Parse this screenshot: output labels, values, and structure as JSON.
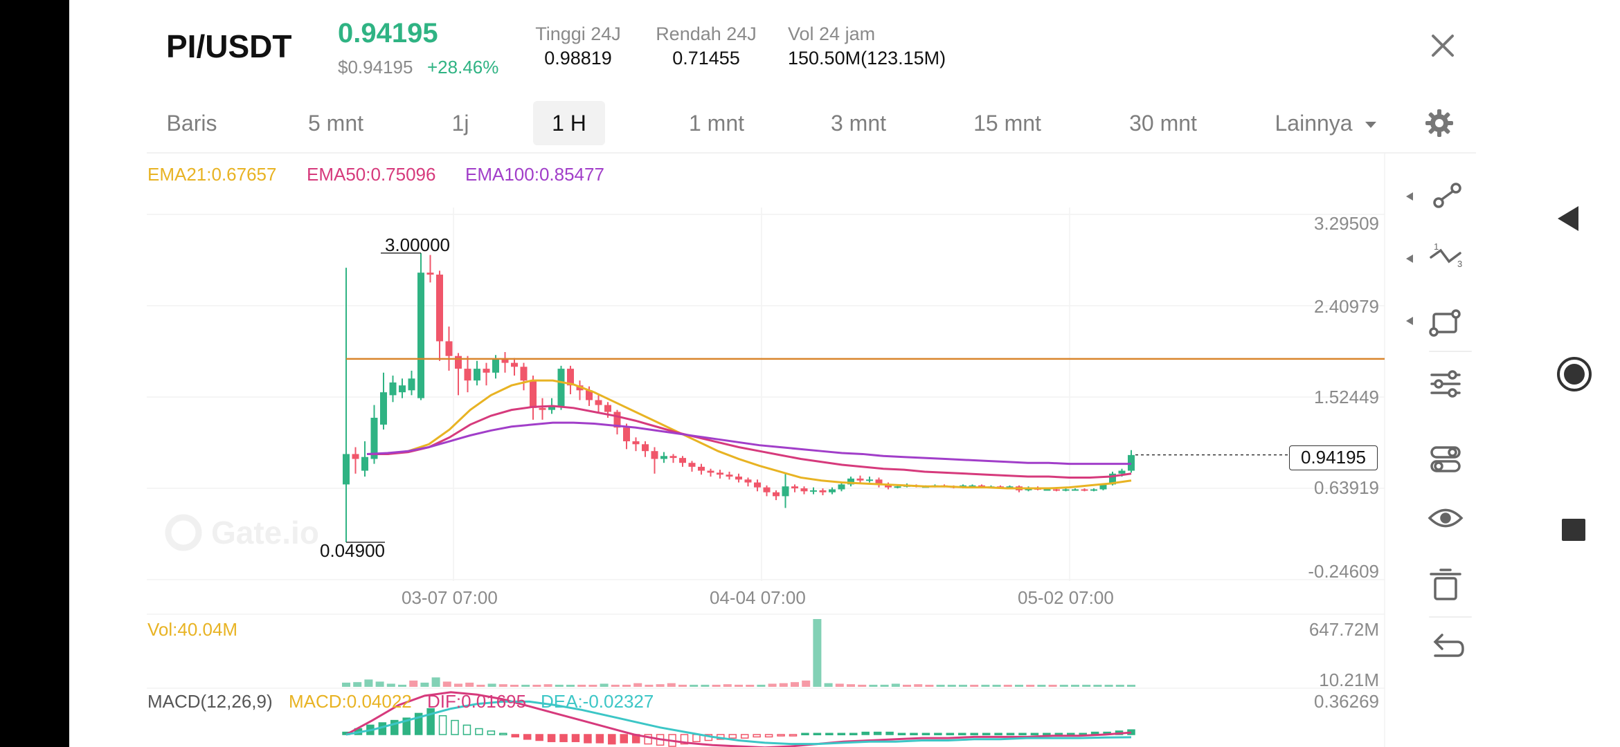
{
  "header": {
    "pair": "PI/USDT",
    "price": "0.94195",
    "price_usd": "$0.94195",
    "change": "+28.46%",
    "stats": [
      {
        "label": "Tinggi 24J",
        "value": "0.98819"
      },
      {
        "label": "Rendah 24J",
        "value": "0.71455"
      },
      {
        "label": "Vol 24 jam",
        "value": "150.50M(123.15M)"
      }
    ]
  },
  "tabs": [
    {
      "label": "Baris",
      "active": false
    },
    {
      "label": "5 mnt",
      "active": false
    },
    {
      "label": "1j",
      "active": false
    },
    {
      "label": "1 H",
      "active": true
    },
    {
      "label": "1 mnt",
      "active": false
    },
    {
      "label": "3 mnt",
      "active": false
    },
    {
      "label": "15 mnt",
      "active": false
    },
    {
      "label": "30 mnt",
      "active": false
    }
  ],
  "more_label": "Lainnya",
  "indicators": {
    "ema21": "EMA21:0.67657",
    "ema50": "EMA50:0.75096",
    "ema100": "EMA100:0.85477",
    "vol": "Vol:40.04M",
    "macd_title": "MACD(12,26,9)",
    "macd": "MACD:0.04022",
    "dif": "DIF:0.01695",
    "dea": "DEA:-0.02327"
  },
  "chart": {
    "y_ticks": [
      "3.29509",
      "2.40979",
      "1.52449",
      "0.63919",
      "-0.24609"
    ],
    "x_ticks": [
      "03-07 07:00",
      "04-04 07:00",
      "05-02 07:00"
    ],
    "high_label": "3.00000",
    "low_label": "0.04900",
    "current_price_tag": "0.94195",
    "vol_ticks": [
      "647.72M",
      "10.21M"
    ],
    "macd_top_tick": "0.36269",
    "watermark": "Gate.io"
  },
  "colors": {
    "up": "#2fb383",
    "down": "#f0566a",
    "ema21": "#e8b323",
    "ema50": "#d63a7c",
    "ema100": "#a13ec9",
    "hline": "#d9842b",
    "dif": "#d63a7c",
    "dea": "#3cc6c6"
  },
  "chart_data": {
    "type": "candlestick",
    "candles": [
      [
        0.64,
        0.95,
        0.05,
        2.85
      ],
      [
        0.95,
        0.9,
        0.75,
        1.02
      ],
      [
        0.78,
        0.92,
        0.72,
        1.08
      ],
      [
        0.9,
        1.32,
        0.85,
        1.45
      ],
      [
        1.25,
        1.58,
        1.2,
        1.78
      ],
      [
        1.55,
        1.68,
        1.48,
        1.75
      ],
      [
        1.58,
        1.65,
        1.52,
        1.72
      ],
      [
        1.6,
        1.72,
        1.55,
        1.8
      ],
      [
        1.52,
        2.8,
        1.5,
        3.0
      ],
      [
        2.8,
        2.78,
        2.7,
        2.98
      ],
      [
        2.78,
        2.1,
        1.9,
        2.82
      ],
      [
        2.1,
        1.95,
        1.8,
        2.25
      ],
      [
        1.95,
        1.82,
        1.55,
        1.98
      ],
      [
        1.82,
        1.7,
        1.58,
        1.95
      ],
      [
        1.7,
        1.82,
        1.65,
        1.9
      ],
      [
        1.82,
        1.78,
        1.65,
        1.88
      ],
      [
        1.78,
        1.92,
        1.72,
        1.96
      ],
      [
        1.92,
        1.88,
        1.78,
        1.99
      ],
      [
        1.88,
        1.84,
        1.75,
        1.93
      ],
      [
        1.84,
        1.7,
        1.6,
        1.88
      ],
      [
        1.7,
        1.42,
        1.3,
        1.75
      ],
      [
        1.42,
        1.4,
        1.3,
        1.52
      ],
      [
        1.4,
        1.44,
        1.36,
        1.52
      ],
      [
        1.44,
        1.82,
        1.4,
        1.85
      ],
      [
        1.82,
        1.65,
        1.56,
        1.85
      ],
      [
        1.65,
        1.6,
        1.5,
        1.7
      ],
      [
        1.6,
        1.5,
        1.44,
        1.64
      ],
      [
        1.5,
        1.45,
        1.38,
        1.55
      ],
      [
        1.45,
        1.38,
        1.32,
        1.48
      ],
      [
        1.38,
        1.22,
        1.15,
        1.4
      ],
      [
        1.22,
        1.08,
        1.0,
        1.26
      ],
      [
        1.08,
        1.05,
        0.98,
        1.12
      ],
      [
        1.05,
        0.98,
        0.92,
        1.08
      ],
      [
        0.98,
        0.9,
        0.75,
        1.02
      ],
      [
        0.9,
        0.93,
        0.86,
        0.97
      ],
      [
        0.93,
        0.91,
        0.86,
        0.95
      ],
      [
        0.91,
        0.86,
        0.82,
        0.93
      ],
      [
        0.86,
        0.82,
        0.77,
        0.88
      ],
      [
        0.82,
        0.78,
        0.74,
        0.85
      ],
      [
        0.78,
        0.76,
        0.72,
        0.8
      ],
      [
        0.76,
        0.74,
        0.7,
        0.79
      ],
      [
        0.74,
        0.72,
        0.69,
        0.77
      ],
      [
        0.72,
        0.69,
        0.66,
        0.75
      ],
      [
        0.69,
        0.66,
        0.62,
        0.71
      ],
      [
        0.66,
        0.61,
        0.57,
        0.69
      ],
      [
        0.61,
        0.56,
        0.52,
        0.63
      ],
      [
        0.56,
        0.52,
        0.48,
        0.58
      ],
      [
        0.52,
        0.62,
        0.4,
        0.75
      ],
      [
        0.62,
        0.6,
        0.56,
        0.64
      ],
      [
        0.6,
        0.57,
        0.54,
        0.62
      ],
      [
        0.57,
        0.58,
        0.54,
        0.61
      ],
      [
        0.58,
        0.56,
        0.53,
        0.6
      ],
      [
        0.56,
        0.59,
        0.54,
        0.61
      ],
      [
        0.59,
        0.64,
        0.57,
        0.66
      ],
      [
        0.64,
        0.7,
        0.62,
        0.72
      ],
      [
        0.7,
        0.68,
        0.65,
        0.73
      ],
      [
        0.68,
        0.69,
        0.66,
        0.72
      ],
      [
        0.69,
        0.64,
        0.61,
        0.71
      ],
      [
        0.64,
        0.61,
        0.59,
        0.66
      ],
      [
        0.61,
        0.62,
        0.6,
        0.64
      ],
      [
        0.62,
        0.63,
        0.61,
        0.65
      ],
      [
        0.63,
        0.62,
        0.61,
        0.64
      ],
      [
        0.62,
        0.62,
        0.61,
        0.63
      ],
      [
        0.62,
        0.63,
        0.61,
        0.64
      ],
      [
        0.63,
        0.62,
        0.61,
        0.64
      ],
      [
        0.62,
        0.61,
        0.6,
        0.63
      ],
      [
        0.61,
        0.63,
        0.6,
        0.64
      ],
      [
        0.63,
        0.63,
        0.62,
        0.64
      ],
      [
        0.63,
        0.62,
        0.61,
        0.64
      ],
      [
        0.62,
        0.62,
        0.61,
        0.63
      ],
      [
        0.62,
        0.61,
        0.6,
        0.63
      ],
      [
        0.61,
        0.62,
        0.6,
        0.63
      ],
      [
        0.62,
        0.58,
        0.56,
        0.63
      ],
      [
        0.58,
        0.6,
        0.57,
        0.62
      ],
      [
        0.6,
        0.59,
        0.58,
        0.62
      ],
      [
        0.59,
        0.59,
        0.58,
        0.6
      ],
      [
        0.59,
        0.58,
        0.57,
        0.6
      ],
      [
        0.58,
        0.59,
        0.57,
        0.6
      ],
      [
        0.59,
        0.59,
        0.58,
        0.6
      ],
      [
        0.59,
        0.58,
        0.57,
        0.6
      ],
      [
        0.58,
        0.59,
        0.57,
        0.6
      ],
      [
        0.59,
        0.64,
        0.58,
        0.65
      ],
      [
        0.64,
        0.75,
        0.63,
        0.77
      ],
      [
        0.75,
        0.78,
        0.72,
        0.8
      ],
      [
        0.78,
        0.94,
        0.76,
        0.99
      ]
    ],
    "ema21": [
      0.95,
      0.95,
      0.98,
      1.05,
      1.2,
      1.4,
      1.55,
      1.65,
      1.7,
      1.7,
      1.66,
      1.58,
      1.48,
      1.38,
      1.28,
      1.18,
      1.08,
      0.98,
      0.9,
      0.83,
      0.77,
      0.71,
      0.68,
      0.66,
      0.65,
      0.64,
      0.63,
      0.62,
      0.62,
      0.61,
      0.61,
      0.6,
      0.6,
      0.6,
      0.61,
      0.63,
      0.65,
      0.68
    ],
    "ema50": [
      0.95,
      0.95,
      0.97,
      1.02,
      1.12,
      1.25,
      1.34,
      1.4,
      1.43,
      1.44,
      1.42,
      1.38,
      1.34,
      1.29,
      1.23,
      1.17,
      1.12,
      1.07,
      1.02,
      0.98,
      0.94,
      0.9,
      0.87,
      0.84,
      0.82,
      0.8,
      0.79,
      0.77,
      0.76,
      0.75,
      0.74,
      0.73,
      0.72,
      0.72,
      0.71,
      0.71,
      0.72,
      0.75
    ],
    "ema100": [
      0.95,
      0.96,
      0.98,
      1.02,
      1.08,
      1.14,
      1.19,
      1.23,
      1.25,
      1.27,
      1.27,
      1.26,
      1.24,
      1.22,
      1.19,
      1.16,
      1.13,
      1.1,
      1.07,
      1.04,
      1.02,
      1.0,
      0.98,
      0.96,
      0.95,
      0.93,
      0.92,
      0.91,
      0.9,
      0.89,
      0.88,
      0.87,
      0.86,
      0.86,
      0.85,
      0.85,
      0.85,
      0.85
    ],
    "horizontal_line": 1.92,
    "y_range": [
      -0.24609,
      3.29509
    ],
    "volume": [
      [
        40,
        1
      ],
      [
        45,
        1
      ],
      [
        70,
        1
      ],
      [
        50,
        1
      ],
      [
        30,
        1
      ],
      [
        20,
        1
      ],
      [
        60,
        0
      ],
      [
        40,
        1
      ],
      [
        90,
        1
      ],
      [
        50,
        0
      ],
      [
        30,
        0
      ],
      [
        40,
        0
      ],
      [
        20,
        0
      ],
      [
        30,
        1
      ],
      [
        25,
        0
      ],
      [
        18,
        0
      ],
      [
        15,
        1
      ],
      [
        10,
        0
      ],
      [
        25,
        0
      ],
      [
        20,
        1
      ],
      [
        15,
        1
      ],
      [
        20,
        0
      ],
      [
        15,
        0
      ],
      [
        30,
        1
      ],
      [
        20,
        0
      ],
      [
        12,
        0
      ],
      [
        35,
        0
      ],
      [
        20,
        0
      ],
      [
        25,
        0
      ],
      [
        35,
        0
      ],
      [
        20,
        0
      ],
      [
        18,
        1
      ],
      [
        12,
        1
      ],
      [
        10,
        0
      ],
      [
        25,
        0
      ],
      [
        20,
        0
      ],
      [
        15,
        0
      ],
      [
        20,
        1
      ],
      [
        30,
        0
      ],
      [
        35,
        0
      ],
      [
        45,
        0
      ],
      [
        60,
        0
      ],
      [
        648,
        1
      ],
      [
        35,
        1
      ],
      [
        30,
        0
      ],
      [
        25,
        0
      ],
      [
        20,
        0
      ],
      [
        15,
        1
      ],
      [
        20,
        1
      ],
      [
        30,
        1
      ],
      [
        15,
        0
      ],
      [
        25,
        0
      ],
      [
        15,
        0
      ],
      [
        8,
        1
      ],
      [
        6,
        1
      ],
      [
        6,
        1
      ],
      [
        5,
        0
      ],
      [
        6,
        1
      ],
      [
        5,
        1
      ],
      [
        5,
        0
      ],
      [
        5,
        1
      ],
      [
        5,
        0
      ],
      [
        4,
        1
      ],
      [
        5,
        0
      ],
      [
        5,
        1
      ],
      [
        5,
        1
      ],
      [
        6,
        1
      ],
      [
        12,
        1
      ],
      [
        8,
        1
      ],
      [
        5,
        1
      ],
      [
        6,
        1
      ]
    ],
    "macd_hist": [
      0.02,
      0.05,
      0.08,
      0.1,
      0.12,
      0.14,
      0.18,
      0.22,
      0.16,
      0.12,
      0.08,
      0.05,
      0.03,
      0.01,
      -0.02,
      -0.04,
      -0.05,
      -0.06,
      -0.06,
      -0.06,
      -0.07,
      -0.07,
      -0.08,
      -0.07,
      -0.07,
      -0.08,
      -0.09,
      -0.1,
      -0.08,
      -0.06,
      -0.05,
      -0.04,
      -0.03,
      -0.03,
      -0.02,
      -0.02,
      -0.01,
      -0.01,
      0.01,
      0.01,
      0.01,
      0.01,
      0.01,
      0.02,
      0.02,
      0.02,
      0.01,
      0.01,
      0.01,
      0.01,
      0.01,
      0.01,
      0.01,
      0.01,
      0.01,
      0.01,
      0.01,
      0.01,
      0.01,
      0.01,
      0.01,
      0.01,
      0.02,
      0.02,
      0.03,
      0.04
    ],
    "dif": [
      0.0,
      0.12,
      0.25,
      0.33,
      0.36,
      0.34,
      0.3,
      0.24,
      0.18,
      0.12,
      0.06,
      0.0,
      -0.04,
      -0.07,
      -0.09,
      -0.1,
      -0.11,
      -0.1,
      -0.08,
      -0.06,
      -0.05,
      -0.04,
      -0.03,
      -0.03,
      -0.02,
      -0.02,
      -0.02,
      -0.01,
      -0.01,
      0.0,
      0.017
    ],
    "dea": [
      0.0,
      0.04,
      0.1,
      0.16,
      0.22,
      0.26,
      0.28,
      0.28,
      0.25,
      0.21,
      0.16,
      0.11,
      0.06,
      0.02,
      -0.02,
      -0.05,
      -0.07,
      -0.08,
      -0.08,
      -0.07,
      -0.06,
      -0.06,
      -0.05,
      -0.05,
      -0.04,
      -0.04,
      -0.03,
      -0.03,
      -0.03,
      -0.025,
      -0.023
    ]
  }
}
